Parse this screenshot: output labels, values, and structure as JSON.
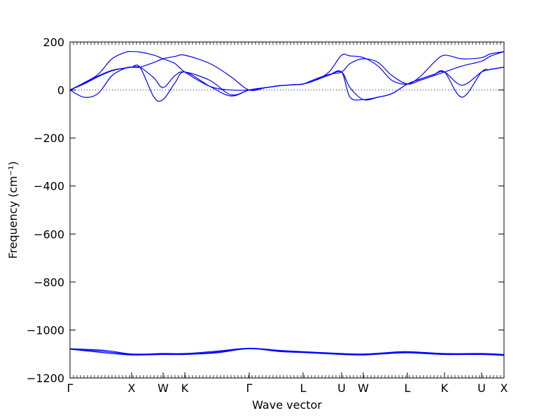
{
  "chart_data": {
    "type": "line",
    "xlabel": "Wave vector",
    "ylabel": "Frequency (cm⁻¹)",
    "ylim": [
      -1200,
      200
    ],
    "yticks": [
      200,
      0,
      -200,
      -400,
      -600,
      -800,
      -1000,
      -1200
    ],
    "ytick_labels": [
      "200",
      "0",
      "−200",
      "−400",
      "−600",
      "−800",
      "−1000",
      "−1200"
    ],
    "xlim": [
      0,
      6.2
    ],
    "high_symmetry_points": [
      {
        "label": "Γ",
        "x": 0.0
      },
      {
        "label": "X",
        "x": 0.88
      },
      {
        "label": "W",
        "x": 1.33
      },
      {
        "label": "K",
        "x": 1.64
      },
      {
        "label": "Γ",
        "x": 2.56
      },
      {
        "label": "L",
        "x": 3.33
      },
      {
        "label": "U",
        "x": 3.88
      },
      {
        "label": "W",
        "x": 4.19
      },
      {
        "label": "L",
        "x": 4.82
      },
      {
        "label": "K",
        "x": 5.35
      },
      {
        "label": "U",
        "x": 5.88
      },
      {
        "label": "X",
        "x": 6.2
      }
    ],
    "zero_line": true,
    "line_color": "#0000ff",
    "series": [
      {
        "x": [
          0,
          0.2,
          0.4,
          0.6,
          0.8,
          0.88,
          1.0,
          1.2,
          1.33,
          1.5,
          1.64,
          2.0,
          2.3,
          2.56,
          2.8,
          3.0,
          3.2,
          3.33,
          3.5,
          3.7,
          3.88,
          4.0,
          4.19,
          4.4,
          4.6,
          4.82,
          5.0,
          5.2,
          5.35,
          5.6,
          5.88,
          6.0,
          6.2
        ],
        "y": [
          0,
          25,
          55,
          80,
          92,
          95,
          95,
          115,
          130,
          140,
          145,
          110,
          55,
          0,
          10,
          18,
          22,
          25,
          40,
          75,
          145,
          142,
          135,
          100,
          40,
          25,
          55,
          115,
          145,
          130,
          135,
          150,
          160
        ]
      },
      {
        "x": [
          0,
          0.2,
          0.4,
          0.6,
          0.8,
          0.88,
          1.0,
          1.2,
          1.33,
          1.5,
          1.64,
          2.0,
          2.3,
          2.56,
          2.8,
          3.0,
          3.2,
          3.33,
          3.5,
          3.7,
          3.88,
          4.0,
          4.19,
          4.4,
          4.6,
          4.82,
          5.0,
          5.2,
          5.35,
          5.6,
          5.88,
          6.0,
          6.2
        ],
        "y": [
          0,
          30,
          65,
          130,
          158,
          160,
          158,
          145,
          130,
          110,
          75,
          15,
          0,
          0,
          10,
          18,
          22,
          25,
          45,
          65,
          75,
          110,
          130,
          115,
          60,
          25,
          40,
          60,
          75,
          100,
          120,
          140,
          160
        ]
      },
      {
        "x": [
          0,
          0.2,
          0.4,
          0.6,
          0.8,
          0.88,
          1.0,
          1.2,
          1.33,
          1.5,
          1.64,
          2.0,
          2.3,
          2.56,
          2.8,
          3.0,
          3.2,
          3.33,
          3.5,
          3.7,
          3.88,
          4.0,
          4.19,
          4.4,
          4.6,
          4.82,
          5.0,
          5.2,
          5.35,
          5.6,
          5.88,
          6.0,
          6.2
        ],
        "y": [
          0,
          28,
          58,
          82,
          92,
          95,
          95,
          50,
          10,
          60,
          75,
          40,
          -20,
          0,
          10,
          18,
          22,
          25,
          40,
          62,
          75,
          10,
          -40,
          -30,
          -15,
          25,
          45,
          65,
          75,
          20,
          75,
          85,
          95
        ]
      },
      {
        "x": [
          0,
          0.2,
          0.4,
          0.6,
          0.8,
          0.88,
          1.0,
          1.2,
          1.33,
          1.5,
          1.64,
          2.0,
          2.3,
          2.56,
          2.8,
          3.0,
          3.2,
          3.33,
          3.5,
          3.7,
          3.88,
          4.0,
          4.19,
          4.4,
          4.6,
          4.82,
          5.0,
          5.2,
          5.35,
          5.6,
          5.88,
          6.0,
          6.2
        ],
        "y": [
          0,
          -30,
          -15,
          60,
          92,
          95,
          95,
          -30,
          -40,
          30,
          75,
          15,
          -25,
          0,
          10,
          18,
          22,
          25,
          40,
          62,
          75,
          -30,
          -40,
          -30,
          -15,
          25,
          45,
          65,
          75,
          -30,
          75,
          85,
          95
        ]
      },
      {
        "x": [
          0,
          0.5,
          0.88,
          1.33,
          1.64,
          2.1,
          2.56,
          3.0,
          3.33,
          3.88,
          4.19,
          4.5,
          4.82,
          5.35,
          5.88,
          6.2
        ],
        "y": [
          -1078,
          -1085,
          -1100,
          -1098,
          -1098,
          -1088,
          -1076,
          -1085,
          -1090,
          -1098,
          -1100,
          -1095,
          -1090,
          -1098,
          -1098,
          -1102
        ]
      },
      {
        "x": [
          0,
          0.5,
          0.88,
          1.33,
          1.64,
          2.1,
          2.56,
          3.0,
          3.33,
          3.88,
          4.19,
          4.5,
          4.82,
          5.35,
          5.88,
          6.2
        ],
        "y": [
          -1078,
          -1090,
          -1102,
          -1100,
          -1100,
          -1092,
          -1077,
          -1088,
          -1092,
          -1100,
          -1102,
          -1097,
          -1093,
          -1100,
          -1100,
          -1104
        ]
      },
      {
        "x": [
          0,
          0.5,
          0.88,
          1.33,
          1.64,
          2.1,
          2.56,
          3.0,
          3.33,
          3.88,
          4.19,
          4.5,
          4.82,
          5.35,
          5.88,
          6.2
        ],
        "y": [
          -1080,
          -1095,
          -1104,
          -1102,
          -1102,
          -1095,
          -1078,
          -1090,
          -1094,
          -1102,
          -1104,
          -1099,
          -1095,
          -1102,
          -1102,
          -1106
        ]
      }
    ]
  }
}
